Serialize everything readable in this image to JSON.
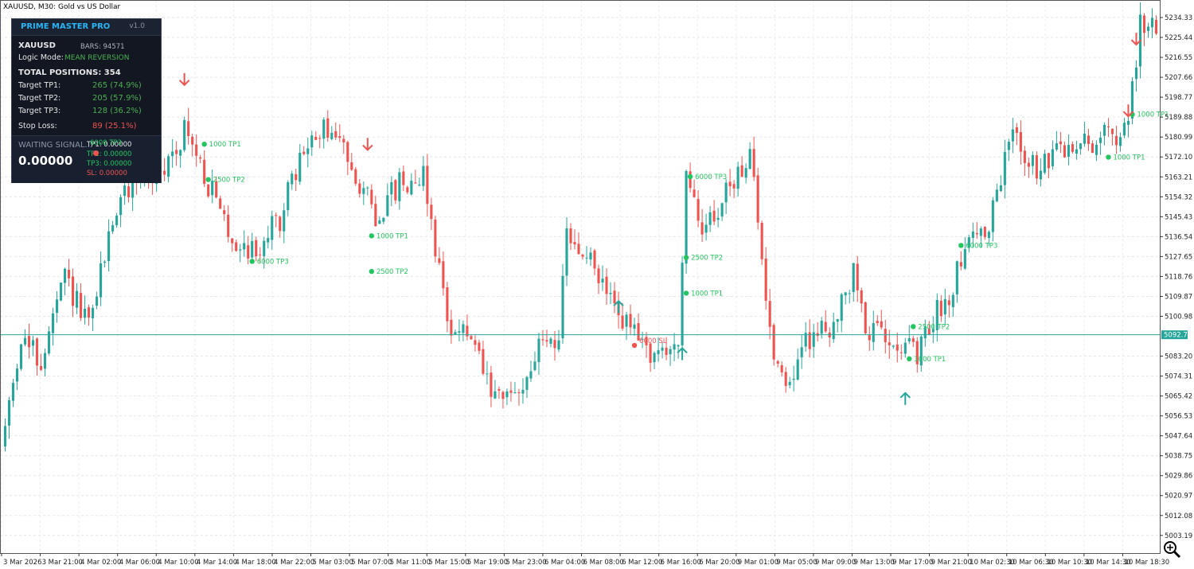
{
  "window": {
    "title": "XAUUSD, M30:  Gold vs US Dollar"
  },
  "colors": {
    "bull": "#26a69a",
    "bear": "#ef5350",
    "signal_green": "#22c55e",
    "current_line": "#26a69a",
    "panel_bg": "#131722"
  },
  "panel": {
    "name": "PRIME MASTER PRO",
    "version": "v1.0",
    "symbol": "XAUUSD",
    "bars": "BARS: 94571",
    "logic_label": "Logic Mode:",
    "logic_value": "MEAN REVERSION",
    "total": "TOTAL POSITIONS: 354",
    "tp1_label": "Target TP1:",
    "tp1_value": "265 (74.9%)",
    "tp2_label": "Target TP2:",
    "tp2_value": "205 (57.9%)",
    "tp3_label": "Target TP3:",
    "tp3_value": "128 (36.2%)",
    "sl_label": "Stop Loss:",
    "sl_value": "89 (25.1%)",
    "waiting": "WAITING SIGNAL...",
    "price": "0.00000",
    "tp1_small": "TP1: 0.00000",
    "tp2_small": "TP2: 0.00000",
    "tp3_small": "TP3: 0.00000",
    "sl_small": "SL: 0.00000",
    "overlap_text": "6000 TP3"
  },
  "chart_data": {
    "type": "candlestick",
    "title": "XAUUSD, M30:  Gold vs US Dollar",
    "ylim": [
      5001.7,
      5238.6
    ],
    "current_price_label": "5092.74",
    "current_price": 5092.74,
    "y_ticks": [
      "5234.33",
      "5225.44",
      "5216.55",
      "5207.66",
      "5198.77",
      "5189.88",
      "5180.99",
      "5172.10",
      "5163.21",
      "5154.32",
      "5145.43",
      "5136.54",
      "5127.65",
      "5118.76",
      "5109.87",
      "5100.98",
      "5083.20",
      "5074.31",
      "5065.42",
      "5056.53",
      "5047.64",
      "5038.75",
      "5029.86",
      "5020.97",
      "5012.08",
      "5003.19"
    ],
    "x_labels": [
      "3 Mar 2026",
      "3 Mar 21:00",
      "4 Mar 02:00",
      "4 Mar 06:00",
      "4 Mar 10:00",
      "4 Mar 14:00",
      "4 Mar 18:00",
      "4 Mar 22:00",
      "5 Mar 03:00",
      "5 Mar 07:00",
      "5 Mar 11:00",
      "5 Mar 15:00",
      "5 Mar 19:00",
      "5 Mar 23:00",
      "6 Mar 04:00",
      "6 Mar 08:00",
      "6 Mar 12:00",
      "6 Mar 16:00",
      "6 Mar 20:00",
      "9 Mar 01:00",
      "9 Mar 05:00",
      "9 Mar 09:00",
      "9 Mar 13:00",
      "9 Mar 17:00",
      "9 Mar 21:00",
      "10 Mar 02:30",
      "10 Mar 06:30",
      "10 Mar 10:30",
      "10 Mar 14:30",
      "10 Mar 18:30"
    ],
    "x_label_count": 30,
    "candle_count": 290,
    "anchors": [
      [
        0,
        5042
      ],
      [
        5,
        5092
      ],
      [
        10,
        5080
      ],
      [
        16,
        5118
      ],
      [
        22,
        5095
      ],
      [
        28,
        5145
      ],
      [
        34,
        5165
      ],
      [
        40,
        5162
      ],
      [
        46,
        5185
      ],
      [
        52,
        5160
      ],
      [
        58,
        5135
      ],
      [
        64,
        5130
      ],
      [
        70,
        5145
      ],
      [
        76,
        5175
      ],
      [
        82,
        5185
      ],
      [
        88,
        5170
      ],
      [
        94,
        5145
      ],
      [
        100,
        5160
      ],
      [
        106,
        5165
      ],
      [
        112,
        5100
      ],
      [
        118,
        5090
      ],
      [
        124,
        5062
      ],
      [
        130,
        5068
      ],
      [
        136,
        5090
      ],
      [
        140,
        5092
      ],
      [
        142,
        5135
      ],
      [
        148,
        5125
      ],
      [
        154,
        5105
      ],
      [
        160,
        5090
      ],
      [
        166,
        5082
      ],
      [
        170,
        5092
      ],
      [
        172,
        5160
      ],
      [
        176,
        5140
      ],
      [
        182,
        5155
      ],
      [
        188,
        5175
      ],
      [
        191,
        5125
      ],
      [
        194,
        5085
      ],
      [
        198,
        5070
      ],
      [
        202,
        5090
      ],
      [
        206,
        5095
      ],
      [
        210,
        5100
      ],
      [
        214,
        5120
      ],
      [
        218,
        5092
      ],
      [
        222,
        5095
      ],
      [
        226,
        5090
      ],
      [
        230,
        5082
      ],
      [
        234,
        5100
      ],
      [
        238,
        5110
      ],
      [
        242,
        5135
      ],
      [
        248,
        5140
      ],
      [
        254,
        5185
      ],
      [
        260,
        5165
      ],
      [
        266,
        5175
      ],
      [
        272,
        5178
      ],
      [
        278,
        5182
      ],
      [
        282,
        5182
      ],
      [
        286,
        5230
      ],
      [
        289,
        5232
      ]
    ],
    "signals": [
      {
        "type": "sell",
        "index": 45,
        "price": 5206
      },
      {
        "type": "sell",
        "index": 91,
        "price": 5177
      },
      {
        "type": "sell",
        "index": 282,
        "price": 5192
      },
      {
        "type": "sell",
        "index": 284,
        "price": 5224
      },
      {
        "type": "buy",
        "index": 154,
        "price": 5106
      },
      {
        "type": "buy",
        "index": 170,
        "price": 5085
      },
      {
        "type": "buy",
        "index": 226,
        "price": 5065
      }
    ],
    "targets": [
      {
        "index": 50,
        "price": 5177.8,
        "label": "1000 TP1"
      },
      {
        "index": 51,
        "price": 5162.0,
        "label": "2500 TP2"
      },
      {
        "index": 62,
        "price": 5125.5,
        "label": "6000 TP3"
      },
      {
        "index": 92,
        "price": 5136.9,
        "label": "1000 TP1"
      },
      {
        "index": 92,
        "price": 5121.0,
        "label": "2500 TP2"
      },
      {
        "index": 171,
        "price": 5111.3,
        "label": "1000 TP1"
      },
      {
        "index": 171,
        "price": 5127.2,
        "label": "2500 TP2"
      },
      {
        "index": 172,
        "price": 5163.3,
        "label": "6000 TP3"
      },
      {
        "index": 227,
        "price": 5082.0,
        "label": "1000 TP1"
      },
      {
        "index": 228,
        "price": 5096.4,
        "label": "2500 TP2"
      },
      {
        "index": 240,
        "price": 5132.6,
        "label": "6000 TP3"
      },
      {
        "index": 277,
        "price": 5172.0,
        "label": "1000 TP1"
      },
      {
        "index": 283,
        "price": 5191.1,
        "label": "1000 TP1"
      }
    ],
    "stop": {
      "index": 158,
      "price": 5088.0,
      "label": "6000 SL"
    }
  }
}
